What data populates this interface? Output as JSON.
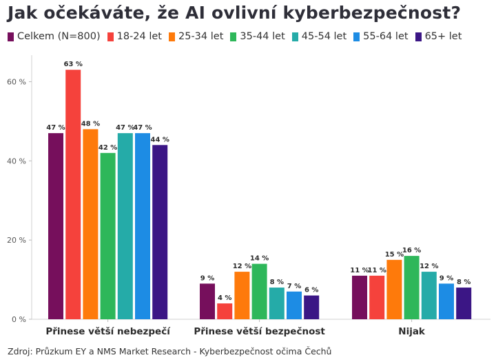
{
  "chart_data": {
    "type": "bar",
    "title": "Jak očekáváte, že AI ovlivní kyberbezpečnost?",
    "categories": [
      "Přinese větší nebezpečí",
      "Přinese větší bezpečnost",
      "Nijak"
    ],
    "series": [
      {
        "name": "Celkem (N=800)",
        "color": "#760f5c",
        "values": [
          47,
          9,
          11
        ]
      },
      {
        "name": "18-24 let",
        "color": "#f5423c",
        "values": [
          63,
          4,
          11
        ]
      },
      {
        "name": "25-34 let",
        "color": "#fe7a0b",
        "values": [
          48,
          12,
          15
        ]
      },
      {
        "name": "35-44 let",
        "color": "#2eb75a",
        "values": [
          42,
          14,
          16
        ]
      },
      {
        "name": "45-54 let",
        "color": "#25aba8",
        "values": [
          47,
          8,
          12
        ]
      },
      {
        "name": "55-64 let",
        "color": "#1d8ce4",
        "values": [
          47,
          7,
          9
        ]
      },
      {
        "name": "65+ let",
        "color": "#3b1685",
        "values": [
          44,
          6,
          8
        ]
      }
    ],
    "value_suffix": " %",
    "ylim": [
      0,
      66
    ],
    "yticks": [
      0,
      20,
      40,
      60
    ],
    "ytick_labels": [
      "0 %",
      "20 %",
      "40 %",
      "60 %"
    ],
    "xlabel": "",
    "ylabel": "",
    "grid": false,
    "legend_position": "top"
  },
  "source": "Zdroj: Průzkum EY a NMS Market Research - Kyberbezpečnost očima Čechů"
}
